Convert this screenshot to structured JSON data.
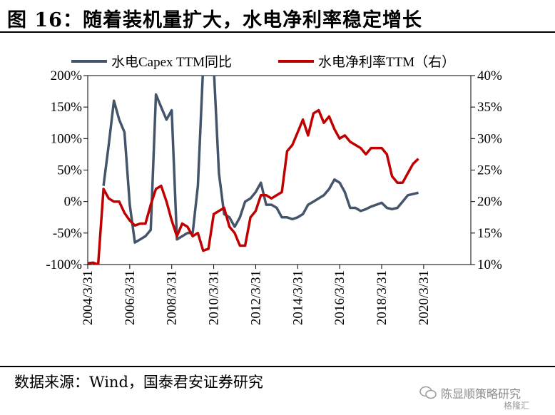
{
  "figure": {
    "title": "图 16：随着装机量扩大，水电净利率稳定增长",
    "source": "数据来源：Wind，国泰君安证券研究",
    "watermark": "陈显顺策略研究",
    "logo_text": "格隆汇"
  },
  "colors": {
    "capex": "#44546a",
    "margin": "#c00000",
    "axis": "#000000"
  },
  "chart_data": {
    "type": "line",
    "x_tick_labels": [
      "2004/3/31",
      "2006/3/31",
      "2008/3/31",
      "2010/3/31",
      "2012/3/31",
      "2014/3/31",
      "2016/3/31",
      "2018/3/31",
      "2020/3/31"
    ],
    "x_range": [
      "2004/3/31",
      "2022/6/30"
    ],
    "y_left": {
      "ticks": [
        "-100%",
        "-50%",
        "0%",
        "50%",
        "100%",
        "150%",
        "200%"
      ],
      "range": [
        -100,
        200
      ]
    },
    "y_right": {
      "ticks": [
        "10%",
        "15%",
        "20%",
        "25%",
        "30%",
        "35%",
        "40%"
      ],
      "range": [
        10,
        40
      ]
    },
    "legend_position": "top",
    "grid": false,
    "series": [
      {
        "name": "水电Capex TTM同比",
        "axis": "left",
        "color": "#44546a",
        "points": [
          [
            "2004/12/31",
            25
          ],
          [
            "2005/3/31",
            90
          ],
          [
            "2005/6/30",
            160
          ],
          [
            "2005/9/30",
            130
          ],
          [
            "2005/12/31",
            110
          ],
          [
            "2006/3/31",
            -5
          ],
          [
            "2006/6/30",
            -65
          ],
          [
            "2006/9/30",
            -60
          ],
          [
            "2006/12/31",
            -55
          ],
          [
            "2007/3/31",
            -45
          ],
          [
            "2007/6/30",
            170
          ],
          [
            "2007/9/30",
            150
          ],
          [
            "2007/12/31",
            130
          ],
          [
            "2008/3/31",
            145
          ],
          [
            "2008/6/30",
            -60
          ],
          [
            "2008/9/30",
            -55
          ],
          [
            "2008/12/31",
            -50
          ],
          [
            "2009/3/31",
            -50
          ],
          [
            "2009/6/30",
            25
          ],
          [
            "2009/9/30",
            215
          ],
          [
            "2009/12/31",
            215
          ],
          [
            "2010/3/31",
            215
          ],
          [
            "2010/6/30",
            45
          ],
          [
            "2010/9/30",
            -20
          ],
          [
            "2010/12/31",
            -25
          ],
          [
            "2011/3/31",
            -40
          ],
          [
            "2011/6/30",
            -25
          ],
          [
            "2011/9/30",
            0
          ],
          [
            "2011/12/31",
            5
          ],
          [
            "2012/3/31",
            15
          ],
          [
            "2012/6/30",
            30
          ],
          [
            "2012/9/30",
            -5
          ],
          [
            "2012/12/31",
            -5
          ],
          [
            "2013/3/31",
            -10
          ],
          [
            "2013/6/30",
            -25
          ],
          [
            "2013/9/30",
            -25
          ],
          [
            "2013/12/31",
            -28
          ],
          [
            "2014/3/31",
            -25
          ],
          [
            "2014/6/30",
            -20
          ],
          [
            "2014/9/30",
            -5
          ],
          [
            "2014/12/31",
            0
          ],
          [
            "2015/3/31",
            5
          ],
          [
            "2015/6/30",
            10
          ],
          [
            "2015/9/30",
            20
          ],
          [
            "2015/12/31",
            35
          ],
          [
            "2016/3/31",
            30
          ],
          [
            "2016/6/30",
            15
          ],
          [
            "2016/9/30",
            -10
          ],
          [
            "2016/12/31",
            -10
          ],
          [
            "2017/3/31",
            -15
          ],
          [
            "2017/6/30",
            -12
          ],
          [
            "2017/9/30",
            -8
          ],
          [
            "2017/12/31",
            -5
          ],
          [
            "2018/3/31",
            -2
          ],
          [
            "2018/6/30",
            -10
          ],
          [
            "2018/9/30",
            -12
          ],
          [
            "2018/12/31",
            -10
          ],
          [
            "2019/3/31",
            0
          ],
          [
            "2019/6/30",
            10
          ],
          [
            "2019/9/30",
            12
          ],
          [
            "2019/12/31",
            14
          ]
        ]
      },
      {
        "name": "水电净利率TTM（右）",
        "axis": "right",
        "color": "#c00000",
        "points": [
          [
            "2004/3/31",
            10.2
          ],
          [
            "2004/6/30",
            10.3
          ],
          [
            "2004/9/30",
            10.0
          ],
          [
            "2004/12/31",
            22.0
          ],
          [
            "2005/3/31",
            20.5
          ],
          [
            "2005/6/30",
            20.0
          ],
          [
            "2005/9/30",
            20.0
          ],
          [
            "2005/12/31",
            18.2
          ],
          [
            "2006/3/31",
            17.0
          ],
          [
            "2006/6/30",
            16.2
          ],
          [
            "2006/9/30",
            16.5
          ],
          [
            "2006/12/31",
            16.5
          ],
          [
            "2007/3/31",
            19.5
          ],
          [
            "2007/6/30",
            22.0
          ],
          [
            "2007/9/30",
            22.5
          ],
          [
            "2007/12/31",
            20.0
          ],
          [
            "2008/3/31",
            17.0
          ],
          [
            "2008/6/30",
            14.5
          ],
          [
            "2008/9/30",
            16.5
          ],
          [
            "2008/12/31",
            16.0
          ],
          [
            "2009/3/31",
            14.5
          ],
          [
            "2009/6/30",
            15.0
          ],
          [
            "2009/9/30",
            12.2
          ],
          [
            "2009/12/31",
            12.5
          ],
          [
            "2010/3/31",
            18.0
          ],
          [
            "2010/6/30",
            18.5
          ],
          [
            "2010/9/30",
            19.0
          ],
          [
            "2010/12/31",
            16.0
          ],
          [
            "2011/3/31",
            15.0
          ],
          [
            "2011/6/30",
            13.0
          ],
          [
            "2011/9/30",
            13.0
          ],
          [
            "2011/12/31",
            17.5
          ],
          [
            "2012/3/31",
            18.5
          ],
          [
            "2012/6/30",
            21.0
          ],
          [
            "2012/9/30",
            21.0
          ],
          [
            "2012/12/31",
            20.5
          ],
          [
            "2013/3/31",
            21.0
          ],
          [
            "2013/6/30",
            21.5
          ],
          [
            "2013/9/30",
            28.0
          ],
          [
            "2013/12/31",
            29.0
          ],
          [
            "2014/3/31",
            31.0
          ],
          [
            "2014/6/30",
            33.0
          ],
          [
            "2014/9/30",
            30.5
          ],
          [
            "2014/12/31",
            34.0
          ],
          [
            "2015/3/31",
            34.5
          ],
          [
            "2015/6/30",
            32.5
          ],
          [
            "2015/9/30",
            33.5
          ],
          [
            "2015/12/31",
            31.5
          ],
          [
            "2016/3/31",
            30.0
          ],
          [
            "2016/6/30",
            30.5
          ],
          [
            "2016/9/30",
            29.5
          ],
          [
            "2016/12/31",
            29.0
          ],
          [
            "2017/3/31",
            28.5
          ],
          [
            "2017/6/30",
            27.5
          ],
          [
            "2017/9/30",
            28.5
          ],
          [
            "2017/12/31",
            28.5
          ],
          [
            "2018/3/31",
            28.5
          ],
          [
            "2018/6/30",
            27.5
          ],
          [
            "2018/9/30",
            24.0
          ],
          [
            "2018/12/31",
            23.0
          ],
          [
            "2019/3/31",
            23.0
          ],
          [
            "2019/6/30",
            24.5
          ],
          [
            "2019/9/30",
            26.0
          ],
          [
            "2019/12/31",
            26.8
          ]
        ]
      }
    ]
  }
}
